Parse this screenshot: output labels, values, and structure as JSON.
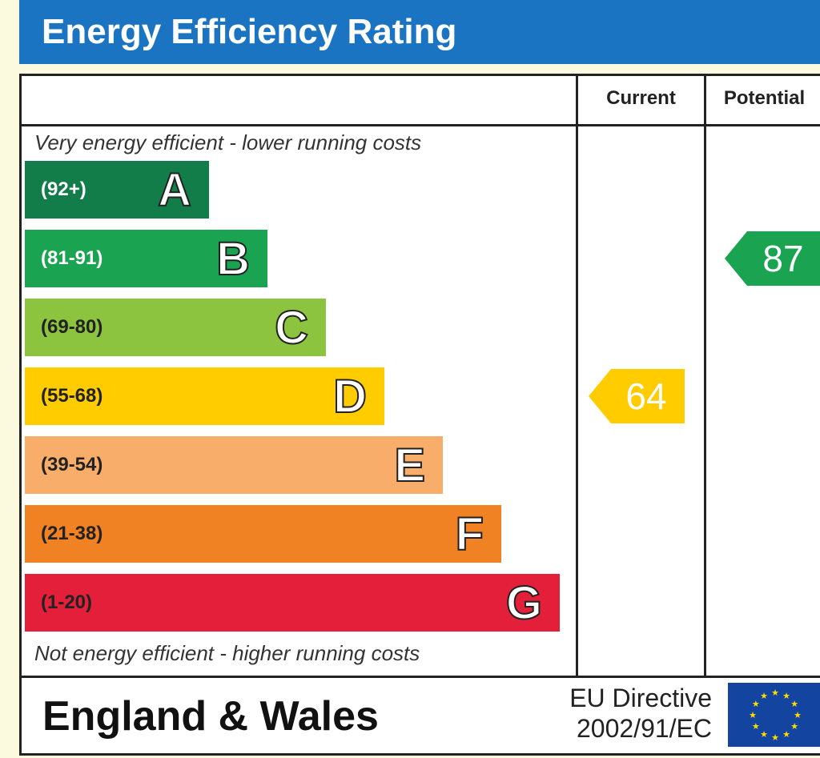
{
  "title": "Energy Efficiency Rating",
  "columns": {
    "current": "Current",
    "potential": "Potential"
  },
  "captions": {
    "top": "Very energy efficient - lower running costs",
    "bottom": "Not energy efficient - higher running costs"
  },
  "chart_data": {
    "type": "bar",
    "title": "Energy Efficiency Rating",
    "bands": [
      {
        "letter": "A",
        "range": "(92+)",
        "min": 92,
        "max": 100,
        "color": "#137d4a",
        "range_color": "#ffffff"
      },
      {
        "letter": "B",
        "range": "(81-91)",
        "min": 81,
        "max": 91,
        "color": "#1aa451",
        "range_color": "#ffffff"
      },
      {
        "letter": "C",
        "range": "(69-80)",
        "min": 69,
        "max": 80,
        "color": "#8cc43f",
        "range_color": "#222222"
      },
      {
        "letter": "D",
        "range": "(55-68)",
        "min": 55,
        "max": 68,
        "color": "#ffcc00",
        "range_color": "#222222"
      },
      {
        "letter": "E",
        "range": "(39-54)",
        "min": 39,
        "max": 54,
        "color": "#f8ae6a",
        "range_color": "#222222"
      },
      {
        "letter": "F",
        "range": "(21-38)",
        "min": 21,
        "max": 38,
        "color": "#f08224",
        "range_color": "#222222"
      },
      {
        "letter": "G",
        "range": "(1-20)",
        "min": 1,
        "max": 20,
        "color": "#e31f3a",
        "range_color": "#222222"
      }
    ],
    "current": {
      "value": 64,
      "band": "D",
      "color": "#ffcc00"
    },
    "potential": {
      "value": 87,
      "band": "B",
      "color": "#1aa451"
    }
  },
  "footer": {
    "country": "England & Wales",
    "directive_line1": "EU Directive",
    "directive_line2": "2002/91/EC"
  }
}
